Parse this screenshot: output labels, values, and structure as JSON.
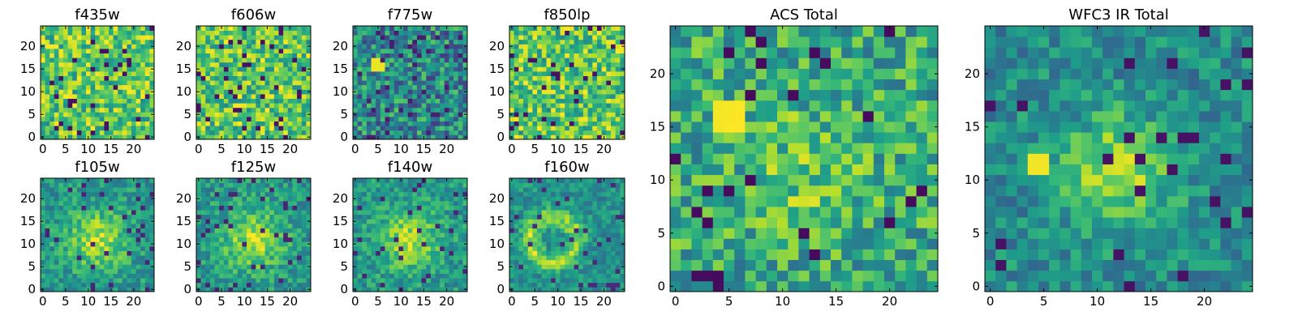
{
  "chart_data": [
    {
      "type": "heatmap",
      "title": "f435w",
      "colormap": "viridis",
      "size": 25,
      "pattern": "noise",
      "seed": 11,
      "xticks": [
        0,
        5,
        10,
        15,
        20
      ],
      "yticks": [
        0,
        5,
        10,
        15,
        20
      ],
      "xlim": [
        0,
        25
      ],
      "ylim": [
        0,
        25
      ]
    },
    {
      "type": "heatmap",
      "title": "f606w",
      "colormap": "viridis",
      "size": 25,
      "pattern": "noise",
      "seed": 23,
      "xticks": [
        0,
        5,
        10,
        15,
        20
      ],
      "yticks": [
        0,
        5,
        10,
        15,
        20
      ],
      "xlim": [
        0,
        25
      ],
      "ylim": [
        0,
        25
      ]
    },
    {
      "type": "heatmap",
      "title": "f775w",
      "colormap": "viridis",
      "size": 25,
      "pattern": "dim-noise",
      "seed": 37,
      "xticks": [
        0,
        5,
        10,
        15,
        20
      ],
      "yticks": [
        0,
        5,
        10,
        15,
        20
      ],
      "xlim": [
        0,
        25
      ],
      "ylim": [
        0,
        25
      ]
    },
    {
      "type": "heatmap",
      "title": "f850lp",
      "colormap": "viridis",
      "size": 25,
      "pattern": "noise",
      "seed": 41,
      "xticks": [
        0,
        5,
        10,
        15,
        20
      ],
      "yticks": [
        0,
        5,
        10,
        15,
        20
      ],
      "xlim": [
        0,
        25
      ],
      "ylim": [
        0,
        25
      ]
    },
    {
      "type": "heatmap",
      "title": "f105w",
      "colormap": "viridis",
      "size": 25,
      "pattern": "blob",
      "seed": 53,
      "xticks": [
        0,
        5,
        10,
        15,
        20
      ],
      "yticks": [
        0,
        5,
        10,
        15,
        20
      ],
      "xlim": [
        0,
        25
      ],
      "ylim": [
        0,
        25
      ]
    },
    {
      "type": "heatmap",
      "title": "f125w",
      "colormap": "viridis",
      "size": 25,
      "pattern": "blob",
      "seed": 67,
      "xticks": [
        0,
        5,
        10,
        15,
        20
      ],
      "yticks": [
        0,
        5,
        10,
        15,
        20
      ],
      "xlim": [
        0,
        25
      ],
      "ylim": [
        0,
        25
      ]
    },
    {
      "type": "heatmap",
      "title": "f140w",
      "colormap": "viridis",
      "size": 25,
      "pattern": "blob",
      "seed": 71,
      "xticks": [
        0,
        5,
        10,
        15,
        20
      ],
      "yticks": [
        0,
        5,
        10,
        15,
        20
      ],
      "xlim": [
        0,
        25
      ],
      "ylim": [
        0,
        25
      ]
    },
    {
      "type": "heatmap",
      "title": "f160w",
      "colormap": "viridis",
      "size": 25,
      "pattern": "ring",
      "seed": 83,
      "xticks": [
        0,
        5,
        10,
        15,
        20
      ],
      "yticks": [
        0,
        5,
        10,
        15,
        20
      ],
      "xlim": [
        0,
        25
      ],
      "ylim": [
        0,
        25
      ]
    },
    {
      "type": "heatmap",
      "title": "ACS Total",
      "colormap": "viridis",
      "size": 25,
      "pattern": "acs",
      "seed": 97,
      "xticks": [
        0,
        5,
        10,
        15,
        20
      ],
      "yticks": [
        0,
        5,
        10,
        15,
        20
      ],
      "xlim": [
        0,
        25
      ],
      "ylim": [
        0,
        25
      ]
    },
    {
      "type": "heatmap",
      "title": "WFC3 IR Total",
      "colormap": "viridis",
      "size": 25,
      "pattern": "wfc3",
      "seed": 101,
      "xticks": [
        0,
        5,
        10,
        15,
        20
      ],
      "yticks": [
        0,
        5,
        10,
        15,
        20
      ],
      "xlim": [
        0,
        25
      ],
      "ylim": [
        0,
        25
      ]
    }
  ]
}
